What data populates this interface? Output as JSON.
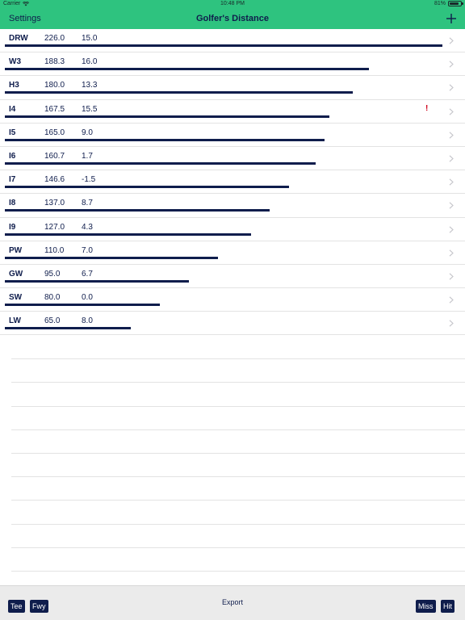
{
  "status_bar": {
    "carrier": "Carrier",
    "time": "10:48 PM",
    "battery_percent": "81%",
    "battery_level": 0.81
  },
  "nav_bar": {
    "settings_label": "Settings",
    "title": "Golfer's Distance",
    "add_icon": "plus-icon"
  },
  "clubs": [
    {
      "club": "DRW",
      "distance": "226.0",
      "deviation": "15.0",
      "warning": "",
      "bar_fraction": 1.0
    },
    {
      "club": "W3",
      "distance": "188.3",
      "deviation": "16.0",
      "warning": "",
      "bar_fraction": 0.833
    },
    {
      "club": "H3",
      "distance": "180.0",
      "deviation": "13.3",
      "warning": "",
      "bar_fraction": 0.796
    },
    {
      "club": "I4",
      "distance": "167.5",
      "deviation": "15.5",
      "warning": "!",
      "bar_fraction": 0.741
    },
    {
      "club": "I5",
      "distance": "165.0",
      "deviation": "9.0",
      "warning": "",
      "bar_fraction": 0.73
    },
    {
      "club": "I6",
      "distance": "160.7",
      "deviation": "1.7",
      "warning": "",
      "bar_fraction": 0.711
    },
    {
      "club": "I7",
      "distance": "146.6",
      "deviation": "-1.5",
      "warning": "",
      "bar_fraction": 0.649
    },
    {
      "club": "I8",
      "distance": "137.0",
      "deviation": "8.7",
      "warning": "",
      "bar_fraction": 0.606
    },
    {
      "club": "I9",
      "distance": "127.0",
      "deviation": "4.3",
      "warning": "",
      "bar_fraction": 0.562
    },
    {
      "club": "PW",
      "distance": "110.0",
      "deviation": "7.0",
      "warning": "",
      "bar_fraction": 0.487
    },
    {
      "club": "GW",
      "distance": "95.0",
      "deviation": "6.7",
      "warning": "",
      "bar_fraction": 0.42
    },
    {
      "club": "SW",
      "distance": "80.0",
      "deviation": "0.0",
      "warning": "",
      "bar_fraction": 0.354
    },
    {
      "club": "LW",
      "distance": "65.0",
      "deviation": "8.0",
      "warning": "",
      "bar_fraction": 0.288
    }
  ],
  "toolbar": {
    "tee_label": "Tee",
    "fwy_label": "Fwy",
    "export_label": "Export",
    "miss_label": "Miss",
    "hit_label": "Hit"
  },
  "colors": {
    "header_green": "#2ec37f",
    "navy": "#0f1d4c",
    "warning_red": "#d0021b",
    "toolbar_gray": "#ebebeb"
  }
}
